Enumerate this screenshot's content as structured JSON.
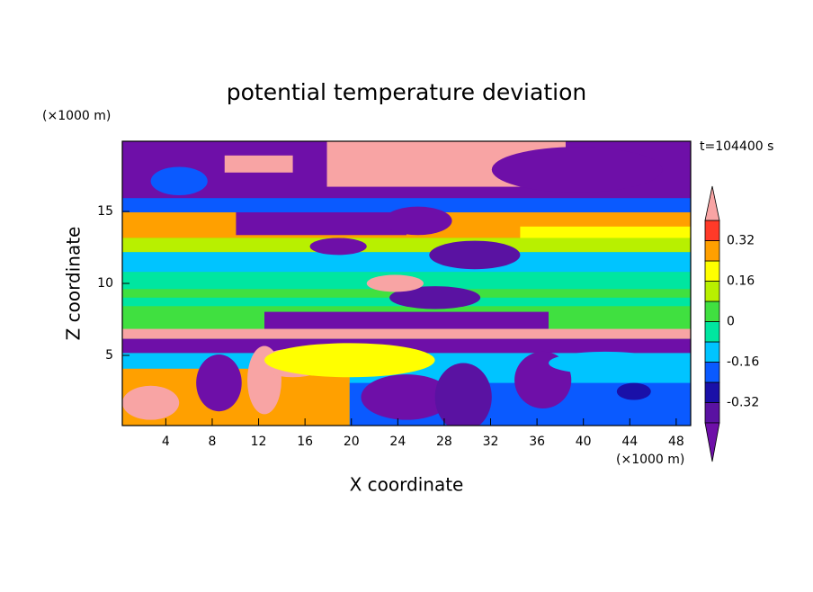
{
  "chart_data": {
    "type": "contour",
    "title": "potential temperature deviation",
    "xlabel": "X coordinate",
    "ylabel": "Z coordinate",
    "x_unit": "(×1000 m)",
    "y_unit": "(×1000 m)",
    "annotation": "t=104400 s",
    "xlim": [
      0.25,
      49.25
    ],
    "xticks": [
      4,
      8,
      12,
      16,
      20,
      24,
      28,
      32,
      36,
      40,
      44,
      48
    ],
    "ylim": [
      0.125,
      19.875
    ],
    "yticks": [
      5,
      10,
      15
    ],
    "levels": [
      -0.4,
      -0.32,
      -0.24,
      -0.16,
      -0.08,
      0,
      0.08,
      0.16,
      0.24,
      0.32,
      0.4
    ],
    "colors": [
      "#6e0fa8",
      "#5a12a2",
      "#1a10a8",
      "#0a5aff",
      "#00c4ff",
      "#00e6a0",
      "#40e040",
      "#b8f000",
      "#ffff00",
      "#ffa000",
      "#ff3a28",
      "#f8a4a4"
    ],
    "colorbar_ticks": [
      -0.32,
      -0.16,
      0,
      0.16,
      0.32
    ]
  }
}
